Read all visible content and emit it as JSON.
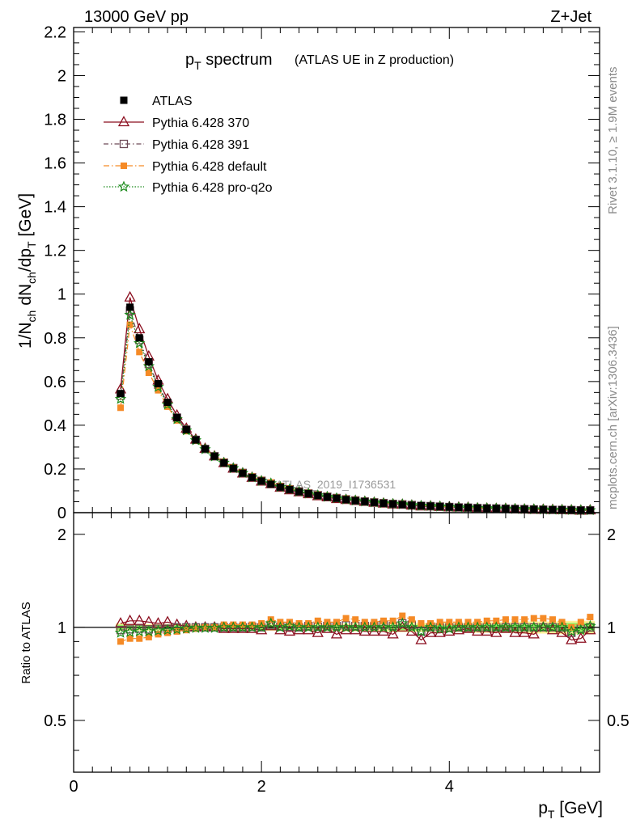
{
  "header": {
    "left": "13000 GeV pp",
    "right": "Z+Jet"
  },
  "side_text": {
    "rivet": "Rivet 3.1.10, ≥ 1.9M events",
    "mcplots": "mcplots.cern.ch [arXiv:1306.3436]"
  },
  "watermark": "ATLAS_2019_I1736531",
  "plot_title": {
    "main": "p",
    "sub": "T",
    "tail": " spectrum",
    "small": "(ATLAS UE in Z production)"
  },
  "legend": [
    "ATLAS",
    "Pythia 6.428 370",
    "Pythia 6.428 391",
    "Pythia 6.428 default",
    "Pythia 6.428 pro-q2o"
  ],
  "colors": {
    "data": "#000000",
    "p370": "#8b0d1e",
    "p391": "#6e4a57",
    "default": "#f58a26",
    "proq2o": "#1a8a1a",
    "band_outer": "#fff399",
    "band_inner": "#99ee66"
  },
  "chart_data": [
    {
      "type": "scatter",
      "panel": "main",
      "xlabel": "p_T [GeV]",
      "ylabel": "1/N_ch dN_ch/dp_T [GeV]",
      "xlim": [
        0,
        5.6
      ],
      "ylim": [
        0,
        2.22
      ],
      "yticks": [
        0,
        0.2,
        0.4,
        0.6,
        0.8,
        1,
        1.2,
        1.4,
        1.6,
        1.8,
        2,
        2.2
      ],
      "ytick_labels": [
        "0",
        "0.2",
        "0.4",
        "0.6",
        "0.8",
        "1",
        "1.2",
        "1.4",
        "1.6",
        "1.8",
        "2",
        "2.2"
      ],
      "x": [
        0.5,
        0.6,
        0.7,
        0.8,
        0.9,
        1.0,
        1.1,
        1.2,
        1.3,
        1.4,
        1.5,
        1.6,
        1.7,
        1.8,
        1.9,
        2.0,
        2.1,
        2.2,
        2.3,
        2.4,
        2.5,
        2.6,
        2.7,
        2.8,
        2.9,
        3.0,
        3.1,
        3.2,
        3.3,
        3.4,
        3.5,
        3.6,
        3.7,
        3.8,
        3.9,
        4.0,
        4.1,
        4.2,
        4.3,
        4.4,
        4.5,
        4.6,
        4.7,
        4.8,
        4.9,
        5.0,
        5.1,
        5.2,
        5.3,
        5.4,
        5.5
      ],
      "series": [
        {
          "name": "ATLAS",
          "values": [
            0.545,
            0.94,
            0.8,
            0.69,
            0.59,
            0.505,
            0.435,
            0.38,
            0.333,
            0.292,
            0.258,
            0.228,
            0.203,
            0.181,
            0.161,
            0.145,
            0.13,
            0.117,
            0.106,
            0.096,
            0.087,
            0.079,
            0.072,
            0.066,
            0.06,
            0.055,
            0.051,
            0.047,
            0.043,
            0.04,
            0.037,
            0.034,
            0.032,
            0.03,
            0.028,
            0.026,
            0.024,
            0.023,
            0.021,
            0.02,
            0.019,
            0.018,
            0.017,
            0.016,
            0.015,
            0.014,
            0.013,
            0.013,
            0.012,
            0.011,
            0.011
          ]
        },
        {
          "name": "Pythia 6.428 370",
          "values": [
            0.565,
            0.985,
            0.84,
            0.715,
            0.605,
            0.52,
            0.445,
            0.385,
            0.335,
            0.293,
            0.258,
            0.227,
            0.202,
            0.18,
            0.16,
            0.143,
            0.131,
            0.115,
            0.103,
            0.094,
            0.085,
            0.076,
            0.071,
            0.063,
            0.059,
            0.054,
            0.05,
            0.046,
            0.042,
            0.038,
            0.037,
            0.033,
            0.029,
            0.029,
            0.027,
            0.025,
            0.024,
            0.023,
            0.02,
            0.019,
            0.018,
            0.018,
            0.016,
            0.015,
            0.014,
            0.014,
            0.013,
            0.012,
            0.011,
            0.01,
            0.011
          ]
        },
        {
          "name": "Pythia 6.428 391",
          "values": [
            0.535,
            0.925,
            0.79,
            0.68,
            0.585,
            0.5,
            0.435,
            0.38,
            0.333,
            0.291,
            0.258,
            0.229,
            0.204,
            0.182,
            0.162,
            0.146,
            0.133,
            0.118,
            0.107,
            0.097,
            0.088,
            0.08,
            0.073,
            0.067,
            0.061,
            0.056,
            0.051,
            0.047,
            0.044,
            0.04,
            0.038,
            0.035,
            0.031,
            0.03,
            0.028,
            0.026,
            0.024,
            0.023,
            0.021,
            0.02,
            0.019,
            0.018,
            0.017,
            0.016,
            0.015,
            0.014,
            0.013,
            0.013,
            0.012,
            0.011,
            0.011
          ]
        },
        {
          "name": "Pythia 6.428 default",
          "values": [
            0.48,
            0.86,
            0.735,
            0.64,
            0.56,
            0.485,
            0.422,
            0.373,
            0.33,
            0.291,
            0.258,
            0.232,
            0.207,
            0.185,
            0.165,
            0.149,
            0.138,
            0.122,
            0.11,
            0.099,
            0.09,
            0.083,
            0.075,
            0.069,
            0.064,
            0.058,
            0.053,
            0.049,
            0.045,
            0.042,
            0.04,
            0.036,
            0.033,
            0.031,
            0.029,
            0.027,
            0.025,
            0.024,
            0.022,
            0.021,
            0.02,
            0.019,
            0.018,
            0.017,
            0.016,
            0.015,
            0.014,
            0.013,
            0.012,
            0.012,
            0.012
          ]
        },
        {
          "name": "Pythia 6.428 pro-q2o",
          "values": [
            0.52,
            0.905,
            0.775,
            0.67,
            0.575,
            0.495,
            0.428,
            0.376,
            0.331,
            0.29,
            0.257,
            0.228,
            0.203,
            0.181,
            0.161,
            0.145,
            0.134,
            0.117,
            0.107,
            0.096,
            0.087,
            0.079,
            0.072,
            0.066,
            0.06,
            0.055,
            0.051,
            0.047,
            0.043,
            0.04,
            0.038,
            0.034,
            0.031,
            0.03,
            0.028,
            0.026,
            0.024,
            0.023,
            0.021,
            0.02,
            0.019,
            0.018,
            0.017,
            0.016,
            0.015,
            0.014,
            0.013,
            0.013,
            0.012,
            0.011,
            0.011
          ]
        }
      ]
    },
    {
      "type": "scatter",
      "panel": "ratio",
      "xlabel": "p_T [GeV]",
      "ylabel": "Ratio to ATLAS",
      "xlim": [
        0,
        5.6
      ],
      "ylim": [
        0.34,
        2.35
      ],
      "yscale": "log",
      "yticks": [
        0.5,
        1,
        2
      ],
      "ytick_labels": [
        "0.5",
        "1",
        "2"
      ],
      "xticks": [
        0,
        2,
        4
      ],
      "xtick_labels": [
        "0",
        "2",
        "4"
      ],
      "x": [
        0.5,
        0.6,
        0.7,
        0.8,
        0.9,
        1.0,
        1.1,
        1.2,
        1.3,
        1.4,
        1.5,
        1.6,
        1.7,
        1.8,
        1.9,
        2.0,
        2.1,
        2.2,
        2.3,
        2.4,
        2.5,
        2.6,
        2.7,
        2.8,
        2.9,
        3.0,
        3.1,
        3.2,
        3.3,
        3.4,
        3.5,
        3.6,
        3.7,
        3.8,
        3.9,
        4.0,
        4.1,
        4.2,
        4.3,
        4.4,
        4.5,
        4.6,
        4.7,
        4.8,
        4.9,
        5.0,
        5.1,
        5.2,
        5.3,
        5.4,
        5.5
      ],
      "band_inner_halfwidth": [
        0.02,
        0.015,
        0.015,
        0.015,
        0.015,
        0.015,
        0.015,
        0.015,
        0.015,
        0.015,
        0.015,
        0.015,
        0.015,
        0.015,
        0.015,
        0.015,
        0.015,
        0.015,
        0.015,
        0.015,
        0.015,
        0.015,
        0.015,
        0.015,
        0.015,
        0.015,
        0.015,
        0.015,
        0.015,
        0.02,
        0.02,
        0.02,
        0.02,
        0.02,
        0.02,
        0.02,
        0.02,
        0.02,
        0.025,
        0.025,
        0.025,
        0.025,
        0.025,
        0.03,
        0.03,
        0.03,
        0.03,
        0.035,
        0.035,
        0.035,
        0.035
      ],
      "band_outer_halfwidth": [
        0.03,
        0.025,
        0.025,
        0.025,
        0.025,
        0.025,
        0.025,
        0.025,
        0.025,
        0.025,
        0.025,
        0.025,
        0.025,
        0.025,
        0.025,
        0.025,
        0.025,
        0.025,
        0.025,
        0.025,
        0.025,
        0.025,
        0.025,
        0.025,
        0.03,
        0.03,
        0.03,
        0.03,
        0.03,
        0.035,
        0.035,
        0.035,
        0.035,
        0.035,
        0.035,
        0.035,
        0.035,
        0.035,
        0.04,
        0.04,
        0.04,
        0.04,
        0.04,
        0.045,
        0.045,
        0.045,
        0.045,
        0.05,
        0.05,
        0.05,
        0.05
      ],
      "series": [
        {
          "name": "Pythia 6.428 370",
          "values": [
            1.03,
            1.05,
            1.05,
            1.04,
            1.03,
            1.04,
            1.02,
            1.01,
            1.0,
            1.0,
            1.0,
            0.99,
            0.99,
            0.99,
            0.99,
            0.98,
            1.01,
            0.98,
            0.97,
            0.98,
            0.98,
            0.96,
            0.99,
            0.95,
            0.98,
            0.98,
            0.97,
            0.97,
            0.97,
            0.95,
            1.0,
            0.97,
            0.91,
            0.96,
            0.96,
            0.97,
            0.98,
            0.99,
            0.97,
            0.97,
            0.96,
            0.99,
            0.96,
            0.96,
            0.95,
            1.0,
            0.98,
            0.96,
            0.91,
            0.92,
            0.98
          ]
        },
        {
          "name": "Pythia 6.428 391",
          "values": [
            0.98,
            0.985,
            0.99,
            0.985,
            0.99,
            0.99,
            1.0,
            1.0,
            1.0,
            1.0,
            1.0,
            1.0,
            1.0,
            1.0,
            1.005,
            1.0,
            1.02,
            1.005,
            1.005,
            1.0,
            1.01,
            1.005,
            1.01,
            1.01,
            1.015,
            1.01,
            1.01,
            1.01,
            1.02,
            1.01,
            1.03,
            1.02,
            0.97,
            1.0,
            1.0,
            1.0,
            1.0,
            1.0,
            1.0,
            1.0,
            1.0,
            1.0,
            1.0,
            1.0,
            1.0,
            1.0,
            1.0,
            1.0,
            0.96,
            0.99,
            1.0
          ]
        },
        {
          "name": "Pythia 6.428 default",
          "values": [
            0.9,
            0.92,
            0.92,
            0.93,
            0.95,
            0.96,
            0.97,
            0.98,
            0.99,
            1.0,
            1.0,
            1.02,
            1.02,
            1.02,
            1.02,
            1.03,
            1.06,
            1.04,
            1.04,
            1.03,
            1.03,
            1.05,
            1.04,
            1.04,
            1.07,
            1.06,
            1.04,
            1.04,
            1.05,
            1.05,
            1.09,
            1.06,
            1.03,
            1.03,
            1.04,
            1.04,
            1.04,
            1.04,
            1.04,
            1.05,
            1.05,
            1.06,
            1.06,
            1.06,
            1.07,
            1.07,
            1.06,
            1.04,
            1.0,
            1.04,
            1.08
          ]
        },
        {
          "name": "Pythia 6.428 pro-q2o",
          "values": [
            0.96,
            0.965,
            0.97,
            0.97,
            0.975,
            0.98,
            0.985,
            0.99,
            0.995,
            0.995,
            0.995,
            1.0,
            1.0,
            1.0,
            1.0,
            1.0,
            1.03,
            1.0,
            1.01,
            1.0,
            1.0,
            1.0,
            1.0,
            1.0,
            1.0,
            1.0,
            1.0,
            1.0,
            1.0,
            1.0,
            1.03,
            1.0,
            0.97,
            1.0,
            0.99,
            0.99,
            1.0,
            1.0,
            1.0,
            1.0,
            1.0,
            1.0,
            1.0,
            1.0,
            1.0,
            1.0,
            1.0,
            1.0,
            0.97,
            0.98,
            1.01
          ]
        }
      ]
    }
  ]
}
